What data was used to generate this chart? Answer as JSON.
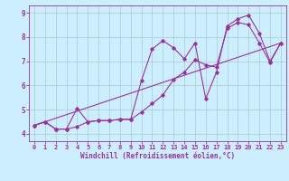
{
  "title": "",
  "xlabel": "Windchill (Refroidissement éolien,°C)",
  "ylabel": "",
  "bg_color": "#cceeff",
  "grid_color": "#aacccc",
  "line_color": "#993399",
  "xlim": [
    -0.5,
    23.5
  ],
  "ylim": [
    3.7,
    9.3
  ],
  "xticks": [
    0,
    1,
    2,
    3,
    4,
    5,
    6,
    7,
    8,
    9,
    10,
    11,
    12,
    13,
    14,
    15,
    16,
    17,
    18,
    19,
    20,
    21,
    22,
    23
  ],
  "yticks": [
    4,
    5,
    6,
    7,
    8,
    9
  ],
  "line1_x": [
    0,
    1,
    2,
    3,
    4,
    5,
    6,
    7,
    8,
    9,
    10,
    11,
    12,
    13,
    14,
    15,
    16,
    17,
    18,
    19,
    20,
    21,
    22,
    23
  ],
  "line1_y": [
    4.35,
    4.5,
    4.2,
    4.2,
    4.3,
    4.5,
    4.55,
    4.55,
    4.6,
    4.6,
    4.9,
    5.25,
    5.6,
    6.25,
    6.55,
    7.05,
    6.85,
    6.75,
    8.35,
    8.6,
    8.5,
    7.75,
    6.95,
    7.75
  ],
  "line2_x": [
    0,
    1,
    2,
    3,
    4,
    5,
    6,
    7,
    8,
    9,
    10,
    11,
    12,
    13,
    14,
    15,
    16,
    17,
    18,
    19,
    20,
    21,
    22,
    23
  ],
  "line2_y": [
    4.35,
    4.5,
    4.2,
    4.2,
    5.05,
    4.5,
    4.55,
    4.55,
    4.6,
    4.6,
    6.2,
    7.5,
    7.85,
    7.55,
    7.1,
    7.75,
    5.45,
    6.55,
    8.45,
    8.75,
    8.9,
    8.15,
    7.0,
    7.75
  ],
  "line3_x": [
    0,
    23
  ],
  "line3_y": [
    4.35,
    7.75
  ],
  "marker": "D",
  "markersize": 1.8,
  "linewidth": 0.8,
  "tick_fontsize": 5.0,
  "xlabel_fontsize": 5.5
}
